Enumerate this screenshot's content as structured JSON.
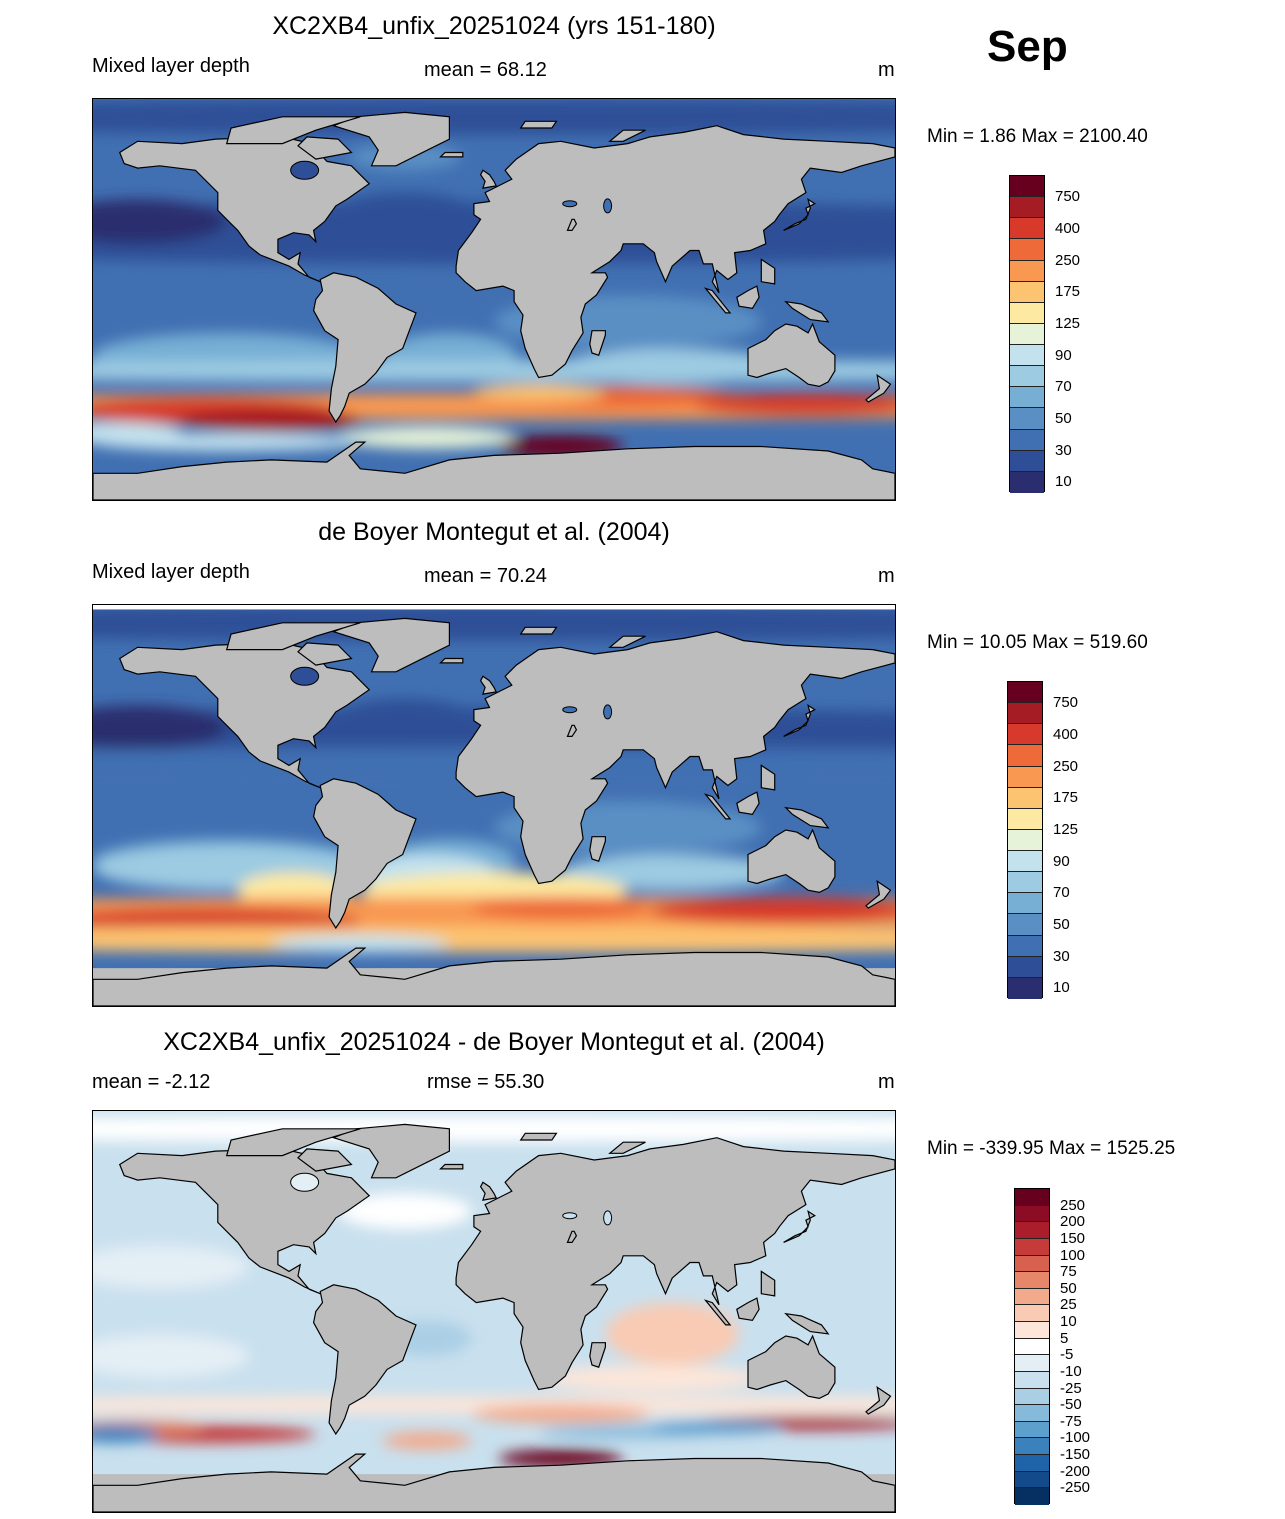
{
  "month": "Sep",
  "panels": [
    {
      "title": "XC2XB4_unfix_20251024 (yrs 151-180)",
      "left": "Mixed layer depth",
      "center": "mean =  68.12",
      "right": "m",
      "minmax": "Min =   1.86 Max = 2100.40",
      "kind": "model"
    },
    {
      "title": "de Boyer Montegut et al. (2004)",
      "left": "Mixed layer depth",
      "center": "mean =  70.24",
      "right": "m",
      "minmax": "Min =  10.05 Max = 519.60",
      "kind": "obs"
    },
    {
      "title": "XC2XB4_unfix_20251024 - de Boyer Montegut et al. (2004)",
      "left": "mean =  -2.12",
      "center": "rmse =  55.30",
      "right": "m",
      "minmax": "Min = -339.95 Max = 1525.25",
      "kind": "diff"
    }
  ],
  "colorbar_levels": {
    "label_values": [
      "750",
      "400",
      "250",
      "175",
      "125",
      "90",
      "70",
      "50",
      "30",
      "10"
    ],
    "colors": [
      "#67001f",
      "#a51c24",
      "#d73a2b",
      "#ee6a38",
      "#f89851",
      "#fcc371",
      "#fde9a1",
      "#e6f3d8",
      "#c3e2ee",
      "#9ccbe2",
      "#76aed4",
      "#5a8fc4",
      "#4170b2",
      "#2e4f97",
      "#2a2d6e"
    ]
  },
  "colorbar_diff": {
    "label_values": [
      "250",
      "200",
      "150",
      "100",
      "75",
      "50",
      "25",
      "10",
      "5",
      "-5",
      "-10",
      "-25",
      "-50",
      "-75",
      "-100",
      "-150",
      "-200",
      "-250"
    ],
    "colors": [
      "#67001f",
      "#8d0c25",
      "#ac1d2c",
      "#c43b3a",
      "#d8604f",
      "#e7876a",
      "#f2aa8d",
      "#f9cbb4",
      "#fde6d9",
      "#ffffff",
      "#e4eef5",
      "#c9e0ee",
      "#aacfe5",
      "#86badb",
      "#5d9fcd",
      "#3b82bd",
      "#1f64a8",
      "#134a8c",
      "#053061"
    ]
  }
}
